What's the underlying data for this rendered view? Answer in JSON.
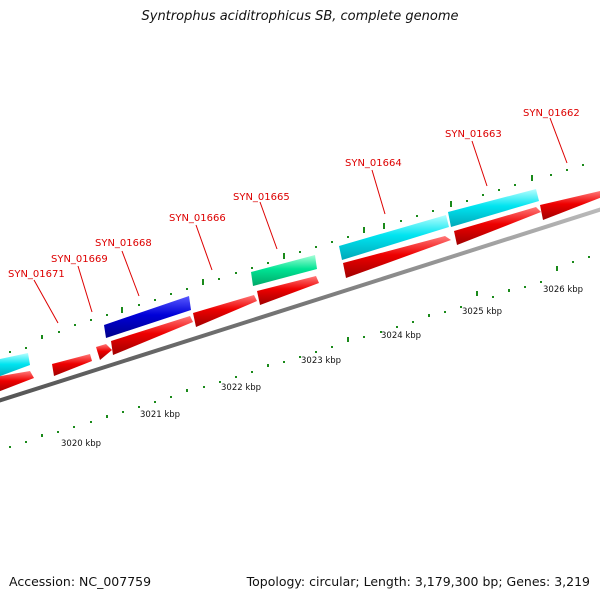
{
  "title": "Syntrophus aciditrophicus SB, complete genome",
  "footer": {
    "accession": "Accession: NC_007759",
    "topology": "Topology: circular; Length: 3,179,300 bp; Genes: 3,219"
  },
  "colors": {
    "forward_cds": "#e00000",
    "reverse_cds": "#00e0ee",
    "blue_cds": "#0000cc",
    "green_cds": "#00e08a",
    "backbone": "#777777",
    "label": "#dd0000",
    "tick": "#1a8a1a"
  },
  "genes": [
    {
      "name": "SYN_01671"
    },
    {
      "name": "SYN_01669"
    },
    {
      "name": "SYN_01668"
    },
    {
      "name": "SYN_01666"
    },
    {
      "name": "SYN_01665"
    },
    {
      "name": "SYN_01664"
    },
    {
      "name": "SYN_01663"
    },
    {
      "name": "SYN_01662"
    }
  ],
  "scale_labels": [
    "3020 kbp",
    "3021 kbp",
    "3022 kbp",
    "3023 kbp",
    "3024 kbp",
    "3025 kbp",
    "3026 kbp"
  ]
}
